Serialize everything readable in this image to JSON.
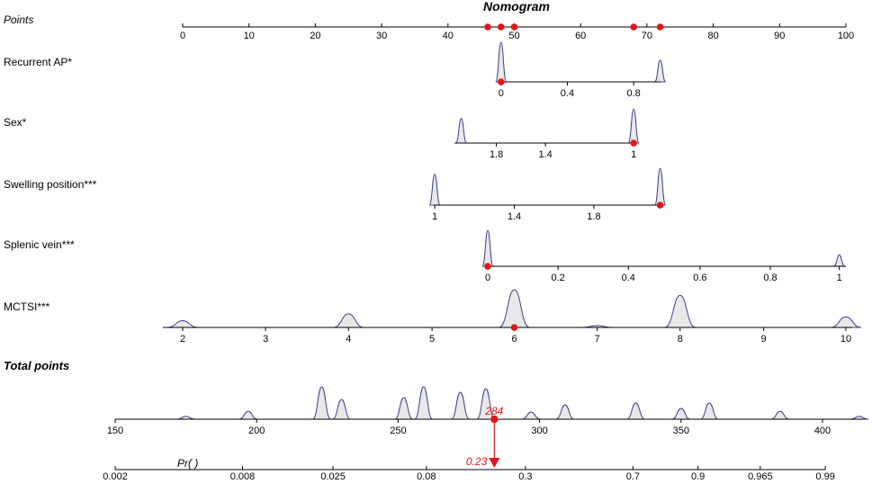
{
  "chart_data": {
    "type": "nomogram",
    "title": "Nomogram",
    "points_axis": {
      "label": "Points",
      "ticks": [
        "0",
        "10",
        "20",
        "30",
        "40",
        "50",
        "60",
        "70",
        "80",
        "90",
        "100"
      ],
      "highlighted_points": [
        46,
        48,
        50,
        68,
        72
      ]
    },
    "predictors": [
      {
        "label": "Recurrent AP*",
        "range_points": [
          48,
          72
        ],
        "ticks": [
          {
            "label": "0",
            "points": 48
          },
          {
            "label": "0.4",
            "points": 58
          },
          {
            "label": "0.8",
            "points": 68
          }
        ],
        "selected_points": 48,
        "density_peaks": [
          {
            "points": 48,
            "rel_height": 1.0
          },
          {
            "points": 72,
            "rel_height": 0.55
          }
        ]
      },
      {
        "label": "Sex*",
        "range_points": [
          41,
          68
        ],
        "ticks": [
          {
            "label": "1.8",
            "points": 47.3
          },
          {
            "label": "1.4",
            "points": 54.7
          },
          {
            "label": "1",
            "points": 68
          }
        ],
        "selected_points": 68,
        "density_peaks": [
          {
            "points": 42,
            "rel_height": 0.65
          },
          {
            "points": 68,
            "rel_height": 0.9
          }
        ]
      },
      {
        "label": "Swelling position***",
        "range_points": [
          38,
          72
        ],
        "ticks": [
          {
            "label": "1",
            "points": 38
          },
          {
            "label": "1.4",
            "points": 50
          },
          {
            "label": "1.8",
            "points": 62
          }
        ],
        "selected_points": 72,
        "density_peaks": [
          {
            "points": 38,
            "rel_height": 0.8
          },
          {
            "points": 72,
            "rel_height": 0.95
          }
        ]
      },
      {
        "label": "Splenic vein***",
        "range_points": [
          46,
          100
        ],
        "ticks": [
          {
            "label": "0",
            "points": 46
          },
          {
            "label": "0.2",
            "points": 56.6
          },
          {
            "label": "0.4",
            "points": 67.2
          },
          {
            "label": "0.6",
            "points": 78
          },
          {
            "label": "0.8",
            "points": 88.6
          },
          {
            "label": "1",
            "points": 99
          }
        ],
        "selected_points": 46,
        "density_peaks": [
          {
            "points": 46,
            "rel_height": 0.95
          },
          {
            "points": 99,
            "rel_height": 0.3
          }
        ]
      },
      {
        "label": "MCTSI***",
        "range_points": [
          -3,
          101
        ],
        "ticks": [
          {
            "label": "2",
            "points": 0
          },
          {
            "label": "3",
            "points": 12.5
          },
          {
            "label": "4",
            "points": 25
          },
          {
            "label": "5",
            "points": 37.6
          },
          {
            "label": "6",
            "points": 50
          },
          {
            "label": "7",
            "points": 62.5
          },
          {
            "label": "8",
            "points": 75
          },
          {
            "label": "9",
            "points": 87.6
          },
          {
            "label": "10",
            "points": 100
          }
        ],
        "selected_points": 50,
        "density_peaks": [
          {
            "points": 0,
            "rel_height": 0.18
          },
          {
            "points": 25,
            "rel_height": 0.36
          },
          {
            "points": 50,
            "rel_height": 1.0
          },
          {
            "points": 62.5,
            "rel_height": 0.05
          },
          {
            "points": 75,
            "rel_height": 0.85
          },
          {
            "points": 100,
            "rel_height": 0.28
          }
        ]
      }
    ],
    "total_points": {
      "label": "Total points",
      "range": [
        150,
        415
      ],
      "ticks": [
        "150",
        "200",
        "250",
        "300",
        "350",
        "400"
      ],
      "selected": 284,
      "selected_label": "284",
      "density_peaks": [
        {
          "x": 175,
          "rel_height": 0.08
        },
        {
          "x": 197,
          "rel_height": 0.22
        },
        {
          "x": 223,
          "rel_height": 0.9
        },
        {
          "x": 230,
          "rel_height": 0.55
        },
        {
          "x": 252,
          "rel_height": 0.6
        },
        {
          "x": 259,
          "rel_height": 0.9
        },
        {
          "x": 272,
          "rel_height": 0.75
        },
        {
          "x": 281,
          "rel_height": 0.85
        },
        {
          "x": 297,
          "rel_height": 0.2
        },
        {
          "x": 309,
          "rel_height": 0.4
        },
        {
          "x": 334,
          "rel_height": 0.45
        },
        {
          "x": 350,
          "rel_height": 0.3
        },
        {
          "x": 360,
          "rel_height": 0.45
        },
        {
          "x": 385,
          "rel_height": 0.22
        },
        {
          "x": 413,
          "rel_height": 0.08
        }
      ]
    },
    "probability_axis": {
      "label": "Pr( )",
      "ticks": [
        {
          "label": "0.002",
          "total": 150
        },
        {
          "label": "0.008",
          "total": 195
        },
        {
          "label": "0.025",
          "total": 227
        },
        {
          "label": "0.08",
          "total": 260
        },
        {
          "label": "0.3",
          "total": 295
        },
        {
          "label": "0.7",
          "total": 333
        },
        {
          "label": "0.9",
          "total": 356
        },
        {
          "label": "0.965",
          "total": 378
        },
        {
          "label": "0.99",
          "total": 401
        }
      ],
      "selected_value": 0.23,
      "selected_label": "0.23"
    },
    "colors": {
      "marker": "#e3141b",
      "density_fill": "#e8e8e8",
      "density_stroke": "#3a3f86",
      "axis": "#000000"
    }
  }
}
